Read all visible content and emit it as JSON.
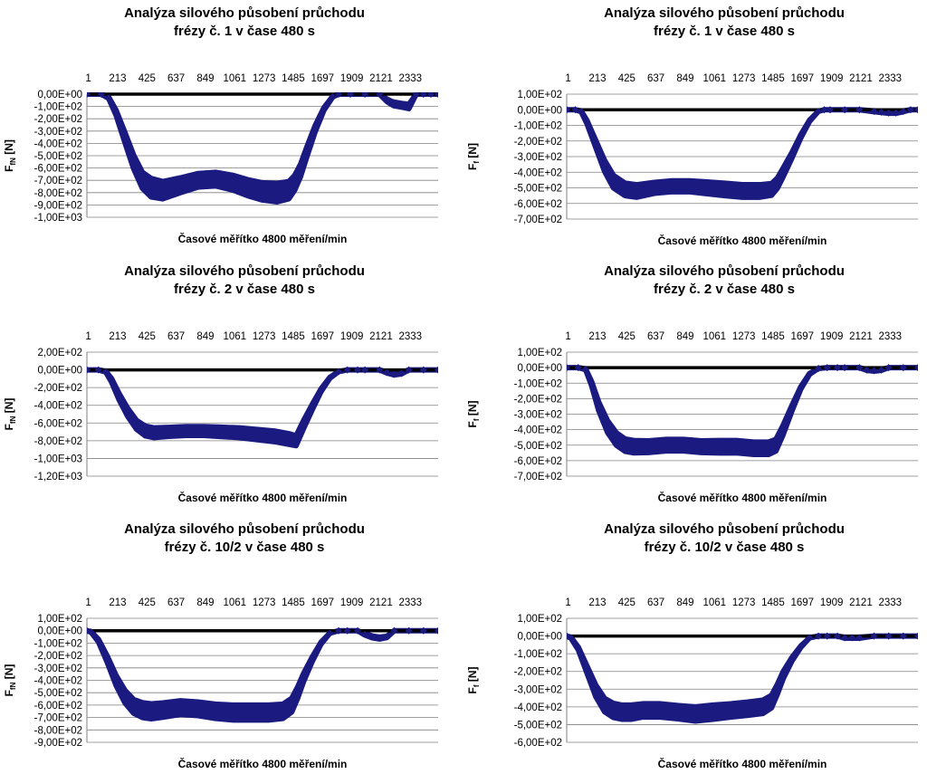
{
  "colors": {
    "series": "#1a1a80",
    "zero_line": "#000000",
    "grid": "#808080"
  },
  "chart_data": [
    {
      "type": "scatter",
      "title": [
        "Analýza silového působení průchodu",
        "frézy č. 1 v čase 480 s"
      ],
      "xlabel": "Časové měřítko 4800 měření/min",
      "ylabel": "F",
      "ylabel_sub": "fN",
      "ylabel_unit": " [N]",
      "x_ticks": [
        "1",
        "213",
        "425",
        "637",
        "849",
        "1061",
        "1273",
        "1485",
        "1697",
        "1909",
        "2121",
        "2333"
      ],
      "y_ticks": [
        "0,00E+00",
        "-1,00E+02",
        "-2,00E+02",
        "-3,00E+02",
        "-4,00E+02",
        "-5,00E+02",
        "-6,00E+02",
        "-7,00E+02",
        "-8,00E+02",
        "-9,00E+02",
        "-1,00E+03"
      ],
      "ylim": [
        -1000,
        0
      ],
      "xlim": [
        1,
        2400
      ],
      "series": [
        {
          "x": [
            1,
            100,
            150,
            200,
            260,
            320,
            380,
            440,
            520,
            640,
            760,
            880,
            1000,
            1100,
            1200,
            1300,
            1380,
            1420,
            1460,
            1500,
            1560,
            1620,
            1680,
            1720,
            1800,
            1900,
            2000,
            2050,
            2080,
            2100,
            2150,
            2200,
            2250,
            2300,
            2350,
            2400
          ],
          "y": [
            0,
            0,
            -30,
            -150,
            -350,
            -550,
            -700,
            -760,
            -780,
            -740,
            -700,
            -690,
            -720,
            -760,
            -790,
            -800,
            -780,
            -720,
            -620,
            -480,
            -280,
            -120,
            -20,
            0,
            0,
            0,
            0,
            -50,
            -70,
            -80,
            -90,
            -100,
            0,
            0,
            0,
            0
          ],
          "band": [
            0,
            0,
            10,
            40,
            80,
            110,
            130,
            150,
            140,
            120,
            110,
            110,
            120,
            130,
            140,
            150,
            140,
            120,
            100,
            80,
            50,
            20,
            5,
            0,
            0,
            0,
            0,
            20,
            25,
            30,
            30,
            35,
            0,
            0,
            0,
            0
          ]
        }
      ]
    },
    {
      "type": "scatter",
      "title": [
        "Analýza silového působení průchodu",
        "frézy č. 1 v čase 480 s"
      ],
      "xlabel": "Časové měřítko 4800 měření/min",
      "ylabel": "F",
      "ylabel_sub": "f",
      "ylabel_unit": " [N]",
      "x_ticks": [
        "1",
        "213",
        "425",
        "637",
        "849",
        "1061",
        "1273",
        "1485",
        "1697",
        "1909",
        "2121",
        "2333"
      ],
      "y_ticks": [
        "1,00E+02",
        "0,00E+00",
        "-1,00E+02",
        "-2,00E+02",
        "-3,00E+02",
        "-4,00E+02",
        "-5,00E+02",
        "-6,00E+02",
        "-7,00E+02"
      ],
      "ylim": [
        -700,
        100
      ],
      "xlim": [
        1,
        2400
      ],
      "series": [
        {
          "x": [
            1,
            60,
            100,
            140,
            200,
            260,
            320,
            400,
            480,
            600,
            720,
            840,
            960,
            1080,
            1200,
            1320,
            1400,
            1440,
            1480,
            1540,
            1600,
            1660,
            1720,
            1760,
            1800,
            1900,
            2000,
            2100,
            2150,
            2200,
            2250,
            2300,
            2350,
            2400
          ],
          "y": [
            0,
            0,
            -10,
            -80,
            -220,
            -360,
            -460,
            -510,
            -520,
            -500,
            -490,
            -490,
            -500,
            -510,
            -520,
            -520,
            -510,
            -470,
            -400,
            -290,
            -170,
            -70,
            -10,
            0,
            0,
            0,
            0,
            -10,
            -15,
            -20,
            -20,
            -10,
            0,
            0
          ],
          "band": [
            0,
            0,
            5,
            20,
            45,
            70,
            80,
            80,
            80,
            70,
            70,
            70,
            75,
            80,
            80,
            80,
            75,
            65,
            55,
            35,
            20,
            8,
            0,
            0,
            0,
            0,
            0,
            5,
            5,
            5,
            5,
            5,
            0,
            0
          ]
        }
      ]
    },
    {
      "type": "scatter",
      "title": [
        "Analýza silového působení průchodu",
        "frézy č. 2 v čase 480 s"
      ],
      "xlabel": "Časové měřítko 4800 měření/min",
      "ylabel": "F",
      "ylabel_sub": "fN",
      "ylabel_unit": " [N]",
      "x_ticks": [
        "1",
        "213",
        "425",
        "637",
        "849",
        "1061",
        "1273",
        "1485",
        "1697",
        "1909",
        "2121",
        "2333"
      ],
      "y_ticks": [
        "2,00E+02",
        "0,00E+00",
        "-2,00E+02",
        "-4,00E+02",
        "-6,00E+02",
        "-8,00E+02",
        "-1,00E+03",
        "-1,20E+03"
      ],
      "ylim": [
        -1200,
        200
      ],
      "xlim": [
        1,
        2400
      ],
      "series": [
        {
          "x": [
            1,
            80,
            130,
            170,
            220,
            280,
            340,
            400,
            460,
            560,
            680,
            800,
            920,
            1040,
            1160,
            1280,
            1380,
            1430,
            1480,
            1540,
            1600,
            1660,
            1720,
            1780,
            1850,
            1900,
            2000,
            2050,
            2100,
            2150,
            2200,
            2300,
            2400
          ],
          "y": [
            0,
            0,
            -20,
            -120,
            -300,
            -480,
            -620,
            -690,
            -710,
            -700,
            -690,
            -690,
            -700,
            -710,
            -730,
            -750,
            -780,
            -800,
            -620,
            -420,
            -230,
            -90,
            -20,
            0,
            0,
            0,
            0,
            -30,
            -50,
            -40,
            0,
            0,
            0
          ],
          "band": [
            0,
            0,
            10,
            40,
            70,
            90,
            100,
            110,
            110,
            100,
            100,
            100,
            105,
            110,
            115,
            120,
            120,
            110,
            90,
            60,
            30,
            10,
            0,
            0,
            0,
            0,
            0,
            10,
            15,
            10,
            0,
            0,
            0
          ]
        }
      ]
    },
    {
      "type": "scatter",
      "title": [
        "Analýza silového působení průchodu",
        "frézy č. 2 v čase 480 s"
      ],
      "xlabel": "Časové měřítko 4800 měření/min",
      "ylabel": "F",
      "ylabel_sub": "f",
      "ylabel_unit": " [N]",
      "x_ticks": [
        "1",
        "213",
        "425",
        "637",
        "849",
        "1061",
        "1273",
        "1485",
        "1697",
        "1909",
        "2121",
        "2333"
      ],
      "y_ticks": [
        "1,00E+02",
        "0,00E+00",
        "-1,00E+02",
        "-2,00E+02",
        "-3,00E+02",
        "-4,00E+02",
        "-5,00E+02",
        "-6,00E+02",
        "-7,00E+02"
      ],
      "ylim": [
        -700,
        100
      ],
      "xlim": [
        1,
        2400
      ],
      "series": [
        {
          "x": [
            1,
            80,
            130,
            170,
            220,
            280,
            340,
            400,
            460,
            560,
            680,
            800,
            920,
            1040,
            1160,
            1280,
            1380,
            1430,
            1480,
            1540,
            1600,
            1660,
            1720,
            1780,
            1850,
            1900,
            2000,
            2050,
            2100,
            2150,
            2200,
            2300,
            2400
          ],
          "y": [
            0,
            0,
            -10,
            -100,
            -250,
            -380,
            -460,
            -500,
            -510,
            -510,
            -500,
            -500,
            -510,
            -510,
            -510,
            -520,
            -520,
            -500,
            -400,
            -260,
            -130,
            -40,
            -5,
            0,
            0,
            0,
            0,
            -15,
            -20,
            -15,
            0,
            0,
            0
          ],
          "band": [
            0,
            0,
            5,
            25,
            55,
            75,
            80,
            80,
            80,
            75,
            75,
            75,
            75,
            80,
            80,
            80,
            80,
            75,
            60,
            35,
            15,
            5,
            0,
            0,
            0,
            0,
            0,
            5,
            5,
            5,
            0,
            0,
            0
          ]
        }
      ]
    },
    {
      "type": "scatter",
      "title": [
        "Analýza silového působení průchodu",
        "frézy č. 10/2 v čase 480 s"
      ],
      "xlabel": "Časové měřítko 4800 měření/min",
      "ylabel": "F",
      "ylabel_sub": "fN",
      "ylabel_unit": " [N]",
      "x_ticks": [
        "1",
        "213",
        "425",
        "637",
        "849",
        "1061",
        "1273",
        "1485",
        "1697",
        "1909",
        "2121",
        "2333"
      ],
      "y_ticks": [
        "1,00E+02",
        "0,00E+00",
        "-1,00E+02",
        "-2,00E+02",
        "-3,00E+02",
        "-4,00E+02",
        "-5,00E+02",
        "-6,00E+02",
        "-7,00E+02",
        "-8,00E+02",
        "-9,00E+02"
      ],
      "ylim": [
        -900,
        100
      ],
      "xlim": [
        1,
        2400
      ],
      "series": [
        {
          "x": [
            1,
            30,
            80,
            140,
            200,
            260,
            320,
            380,
            440,
            520,
            640,
            760,
            880,
            1000,
            1120,
            1240,
            1340,
            1400,
            1440,
            1480,
            1540,
            1600,
            1660,
            1720,
            1780,
            1850,
            1900,
            1950,
            2000,
            2050,
            2100,
            2200,
            2300,
            2400
          ],
          "y": [
            0,
            -10,
            -80,
            -230,
            -400,
            -530,
            -610,
            -640,
            -650,
            -640,
            -620,
            -630,
            -650,
            -660,
            -660,
            -660,
            -650,
            -600,
            -500,
            -380,
            -230,
            -100,
            -20,
            0,
            0,
            0,
            -30,
            -50,
            -60,
            -50,
            0,
            0,
            0,
            0
          ],
          "band": [
            0,
            5,
            20,
            50,
            80,
            100,
            110,
            120,
            120,
            115,
            110,
            110,
            115,
            120,
            120,
            120,
            115,
            110,
            90,
            65,
            35,
            15,
            0,
            0,
            0,
            0,
            10,
            15,
            15,
            10,
            0,
            0,
            0,
            0
          ]
        }
      ]
    },
    {
      "type": "scatter",
      "title": [
        "Analýza silového působení průchodu",
        "frézy č. 10/2 v čase 480 s"
      ],
      "xlabel": "Časové měřítko 4800 měření/min",
      "ylabel": "F",
      "ylabel_sub": "f",
      "ylabel_unit": " [N]",
      "x_ticks": [
        "1",
        "213",
        "425",
        "637",
        "849",
        "1061",
        "1273",
        "1485",
        "1697",
        "1909",
        "2121",
        "2333"
      ],
      "y_ticks": [
        "1,00E+02",
        "0,00E+00",
        "-1,00E+02",
        "-2,00E+02",
        "-3,00E+02",
        "-4,00E+02",
        "-5,00E+02",
        "-6,00E+02"
      ],
      "ylim": [
        -600,
        100
      ],
      "xlim": [
        1,
        2400
      ],
      "series": [
        {
          "x": [
            1,
            30,
            80,
            140,
            200,
            260,
            320,
            380,
            440,
            520,
            640,
            760,
            880,
            1000,
            1120,
            1240,
            1340,
            1400,
            1440,
            1480,
            1540,
            1600,
            1660,
            1720,
            1780,
            1850,
            1900,
            1950,
            2000,
            2100,
            2200,
            2300,
            2400
          ],
          "y": [
            0,
            -10,
            -70,
            -190,
            -310,
            -390,
            -420,
            -430,
            -430,
            -420,
            -420,
            -430,
            -440,
            -430,
            -420,
            -410,
            -400,
            -370,
            -300,
            -220,
            -130,
            -60,
            -10,
            0,
            0,
            0,
            -10,
            -10,
            -10,
            0,
            0,
            0,
            0
          ],
          "band": [
            0,
            5,
            15,
            40,
            65,
            75,
            80,
            80,
            80,
            75,
            75,
            75,
            80,
            80,
            75,
            75,
            75,
            70,
            55,
            40,
            20,
            8,
            0,
            0,
            0,
            0,
            5,
            5,
            5,
            0,
            0,
            0,
            0
          ]
        }
      ]
    }
  ]
}
